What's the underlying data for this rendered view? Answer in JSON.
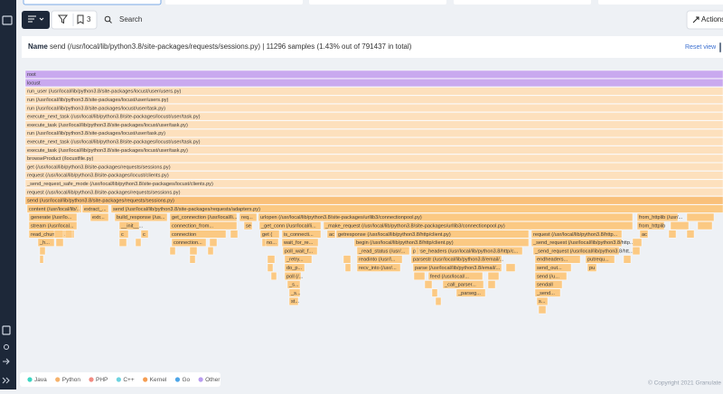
{
  "toolbar": {
    "bookmark_count": "3",
    "search_placeholder": "Search",
    "actions": "Actions"
  },
  "info": {
    "name_label": "Name",
    "function": "send (/usr/local/lib/python3.8/site-packages/requests/sessions.py)",
    "summary": "| 11296 samples (1.43% out of 791437 in total)",
    "reset": "Reset view"
  },
  "flamegraph": {
    "rows": [
      [
        "root"
      ],
      [
        "locust"
      ],
      [
        "run_user (/usr/local/lib/python3.8/site-packages/locust/user/users.py)"
      ],
      [
        "run (/usr/local/lib/python3.8/site-packages/locust/user/users.py)"
      ],
      [
        "run (/usr/local/lib/python3.8/site-packages/locust/user/task.py)"
      ],
      [
        "execute_next_task (/usr/local/lib/python3.8/site-packages/locust/user/task.py)"
      ],
      [
        "execute_task (/usr/local/lib/python3.8/site-packages/locust/user/task.py)"
      ],
      [
        "run (/usr/local/lib/python3.8/site-packages/locust/user/task.py)"
      ],
      [
        "execute_next_task (/usr/local/lib/python3.8/site-packages/locust/user/task.py)"
      ],
      [
        "execute_task (/usr/local/lib/python3.8/site-packages/locust/user/task.py)"
      ],
      [
        "browseProduct (/locustfile.py)"
      ],
      [
        "get (/usr/local/lib/python3.8/site-packages/requests/sessions.py)"
      ],
      [
        "request (/usr/local/lib/python3.8/site-packages/locust/clients.py)"
      ],
      [
        "_send_request_safe_mode (/usr/local/lib/python3.8/site-packages/locust/clients.py)"
      ],
      [
        "request (/usr/local/lib/python3.8/site-packages/requests/sessions.py)"
      ],
      [
        "send (/usr/local/lib/python3.8/site-packages/requests/sessions.py)"
      ],
      [
        "content (/usr/local/lib/...",
        "extract_...",
        "send (/usr/local/lib/python3.8/site-packages/requests/adapters.py)"
      ],
      [
        "generate (/usr/lo...",
        "extr...",
        "build_response (/us...",
        "get_connection (/usr/local/li...",
        "req...",
        "urlopen (/usr/local/lib/python3.8/site-packages/urllib3/connectionpool.py)",
        "from_httplib (/usr/..."
      ],
      [
        "stream (/usr/local...",
        "__init__...",
        "connection_from...",
        "se",
        "_get_conn (/usr/local/li...",
        "_make_request (/usr/local/lib/python3.8/site-packages/urllib3/connectionpool.py)",
        "from_httplib"
      ],
      [
        "read_chunked ...",
        "c",
        "c",
        "connection",
        "get (",
        "is_connecti...",
        "ac",
        "getresponse (/usr/local/lib/python3.8/http/client.py)",
        "request (/usr/local/lib/python3.8/http...",
        "ac"
      ],
      [
        "_h...",
        "connection...",
        "no...",
        "wait_for_re...",
        "begin (/usr/local/lib/python3.8/http/client.py)",
        "_send_request (/usr/local/lib/python3.8/http..."
      ],
      [
        "poll_wait_f...",
        "_read_status (/usr/...",
        "parse_headers (/usr/local/lib/python3.8/http/c...",
        "_send_request (/usr/local/lib/python3.8/htt..."
      ],
      [
        "_retry...",
        "readinto (/usr/l...",
        "parsestr (/usr/local/lib/python3.8/email/...",
        "endheaders...",
        "putrequ..."
      ],
      [
        "do_p...",
        "recv_into (/usr/...",
        "parse (/usr/local/lib/python3.8/email/...",
        "send_out...",
        "pu"
      ],
      [
        "poll (/...",
        "feed (/usr/local/...",
        "send (/u..."
      ],
      [
        "_s...",
        "_call_parser...",
        "sendall"
      ],
      [
        "_s...",
        "_parseg...",
        "_send..."
      ],
      [
        "st...",
        "s..."
      ]
    ]
  },
  "legend": [
    "Java",
    "Python",
    "PHP",
    "C++",
    "Kernel",
    "Go",
    "Other"
  ],
  "footer": "© Copyright 2021 Granulate"
}
